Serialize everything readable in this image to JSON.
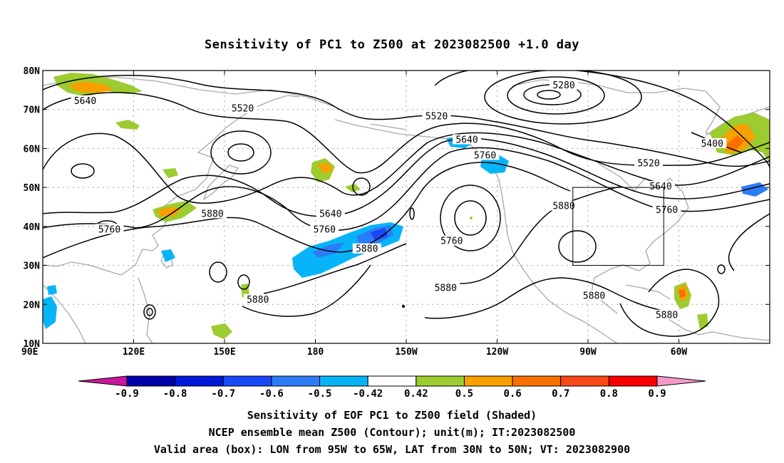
{
  "title": "Sensitivity of PC1 to Z500 at 2023082500 +1.0 day",
  "lat_ticks": [
    {
      "lat": 80,
      "label": "80N"
    },
    {
      "lat": 70,
      "label": "70N"
    },
    {
      "lat": 60,
      "label": "60N"
    },
    {
      "lat": 50,
      "label": "50N"
    },
    {
      "lat": 40,
      "label": "40N"
    },
    {
      "lat": 30,
      "label": "30N"
    },
    {
      "lat": 20,
      "label": "20N"
    },
    {
      "lat": 10,
      "label": "10N"
    }
  ],
  "lon_ticks": [
    {
      "lon": 90,
      "label": "90E"
    },
    {
      "lon": 120,
      "label": "120E"
    },
    {
      "lon": 150,
      "label": "150E"
    },
    {
      "lon": 180,
      "label": "180"
    },
    {
      "lon": 210,
      "label": "150W"
    },
    {
      "lon": 240,
      "label": "120W"
    },
    {
      "lon": 270,
      "label": "90W"
    },
    {
      "lon": 300,
      "label": "60W"
    }
  ],
  "map_extent": {
    "lon_min": 90,
    "lon_max": 330,
    "lat_min": 10,
    "lat_max": 80
  },
  "box": {
    "lon_min": 265,
    "lon_max": 295,
    "lat_min": 30,
    "lat_max": 50
  },
  "colorbar": {
    "labels": [
      "-0.9",
      "-0.8",
      "-0.7",
      "-0.6",
      "-0.5",
      "-0.42",
      "0.42",
      "0.5",
      "0.6",
      "0.7",
      "0.8",
      "0.9"
    ],
    "under_color": "#c8189c",
    "over_color": "#f59ac8",
    "colors": [
      "#0000a8",
      "#0018d8",
      "#1848f8",
      "#2c7cf8",
      "#08b4f8",
      "#ffffff",
      "#9ccc30",
      "#f8a000",
      "#f87000",
      "#f84818",
      "#f80000"
    ]
  },
  "contour_labels": [
    {
      "text": "5640",
      "lon": 104,
      "lat": 72
    },
    {
      "text": "5520",
      "lon": 156,
      "lat": 70
    },
    {
      "text": "5760",
      "lon": 112,
      "lat": 39
    },
    {
      "text": "5880",
      "lon": 146,
      "lat": 43
    },
    {
      "text": "5640",
      "lon": 185,
      "lat": 43
    },
    {
      "text": "5760",
      "lon": 183,
      "lat": 39
    },
    {
      "text": "5880",
      "lon": 197,
      "lat": 34
    },
    {
      "text": "5880",
      "lon": 161,
      "lat": 21
    },
    {
      "text": "5520",
      "lon": 220,
      "lat": 68
    },
    {
      "text": "5640",
      "lon": 230,
      "lat": 62
    },
    {
      "text": "5760",
      "lon": 236,
      "lat": 58
    },
    {
      "text": "5280",
      "lon": 262,
      "lat": 76
    },
    {
      "text": "5760",
      "lon": 225,
      "lat": 36
    },
    {
      "text": "5880",
      "lon": 223,
      "lat": 24
    },
    {
      "text": "5880",
      "lon": 262,
      "lat": 45
    },
    {
      "text": "5880",
      "lon": 272,
      "lat": 22
    },
    {
      "text": "5520",
      "lon": 290,
      "lat": 56
    },
    {
      "text": "5640",
      "lon": 294,
      "lat": 50
    },
    {
      "text": "5760",
      "lon": 296,
      "lat": 44
    },
    {
      "text": "5400",
      "lon": 311,
      "lat": 61
    },
    {
      "text": "5880",
      "lon": 296,
      "lat": 17
    }
  ],
  "footer": [
    "Sensitivity of EOF PC1 to Z500 field (Shaded)",
    "NCEP ensemble mean Z500 (Contour); unit(m); IT:2023082500",
    "Valid area (box): LON from 95W to 65W, LAT from 30N to 50N; VT: 2023082900"
  ]
}
